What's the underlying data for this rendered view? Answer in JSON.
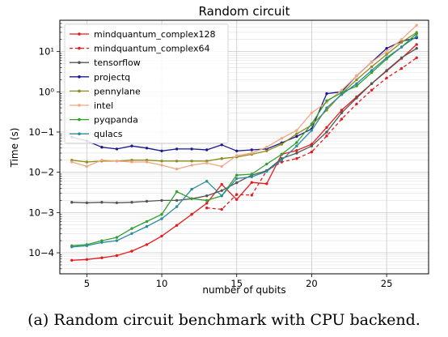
{
  "chart_data": {
    "type": "line",
    "title": "Random circuit",
    "xlabel": "number of qubits",
    "ylabel": "Time (s)",
    "xlim": [
      3.2,
      27.8
    ],
    "ylim": [
      3e-05,
      60
    ],
    "yscale": "log",
    "x_ticks": [
      5,
      10,
      15,
      20,
      25
    ],
    "x_tick_labels": [
      "5",
      "10",
      "15",
      "20",
      "25"
    ],
    "y_ticks": [
      0.0001,
      0.001,
      0.01,
      0.1,
      1,
      10
    ],
    "y_tick_labels": [
      "10−4",
      "10−3",
      "10−2",
      "10−1",
      "10⁰",
      "10¹"
    ],
    "grid": true,
    "legend_position": "top-left",
    "x": [
      4,
      5,
      6,
      7,
      8,
      9,
      10,
      11,
      12,
      13,
      14,
      15,
      16,
      17,
      18,
      19,
      20,
      21,
      22,
      23,
      24,
      25,
      26,
      27
    ],
    "series": [
      {
        "name": "mindquantum_complex128",
        "color": "#e8191c",
        "dashed": false,
        "values": [
          6.5e-05,
          6.8e-05,
          7.5e-05,
          8.5e-05,
          0.00011,
          0.00016,
          0.00026,
          0.00048,
          0.0009,
          0.0017,
          0.005,
          0.0021,
          0.0056,
          0.0052,
          0.028,
          0.035,
          0.05,
          0.13,
          0.35,
          0.75,
          1.6,
          3.3,
          6.8,
          15
        ]
      },
      {
        "name": "mindquantum_complex64",
        "color": "#e8191c",
        "dashed": true,
        "values": [
          null,
          null,
          null,
          null,
          null,
          null,
          null,
          null,
          null,
          0.0013,
          0.0012,
          0.0028,
          0.0027,
          0.011,
          0.018,
          0.022,
          0.032,
          0.08,
          0.21,
          0.5,
          1.1,
          2.2,
          3.8,
          7
        ]
      },
      {
        "name": "tensorflow",
        "color": "#555555",
        "dashed": false,
        "values": [
          0.0018,
          0.00175,
          0.0018,
          0.00175,
          0.0018,
          0.0019,
          0.002,
          0.002,
          0.0022,
          0.0026,
          0.0035,
          0.0055,
          0.0085,
          0.011,
          0.022,
          0.03,
          0.045,
          0.1,
          0.3,
          0.7,
          1.6,
          3.4,
          7,
          12
        ]
      },
      {
        "name": "projectq",
        "color": "#1a1a8c",
        "dashed": false,
        "values": [
          0.075,
          0.06,
          0.042,
          0.038,
          0.045,
          0.04,
          0.034,
          0.038,
          0.038,
          0.036,
          0.048,
          0.034,
          0.036,
          0.038,
          0.054,
          0.078,
          0.12,
          0.9,
          1.0,
          2.5,
          5.5,
          12,
          18,
          22
        ]
      },
      {
        "name": "pennylane",
        "color": "#8c8c1a",
        "dashed": false,
        "values": [
          0.02,
          0.018,
          0.019,
          0.019,
          0.02,
          0.02,
          0.019,
          0.019,
          0.019,
          0.019,
          0.022,
          0.024,
          0.028,
          0.034,
          0.05,
          0.09,
          0.15,
          0.35,
          0.9,
          2.0,
          4.2,
          8.5,
          17,
          30
        ]
      },
      {
        "name": "intel",
        "color": "#f4a582",
        "dashed": false,
        "values": [
          0.018,
          0.014,
          0.02,
          0.019,
          0.018,
          0.018,
          0.015,
          0.012,
          0.015,
          0.017,
          0.014,
          0.026,
          0.03,
          0.042,
          0.07,
          0.11,
          0.3,
          0.55,
          1.1,
          2.5,
          5.5,
          10,
          20,
          45
        ]
      },
      {
        "name": "pyqpanda",
        "color": "#33a02c",
        "dashed": false,
        "values": [
          0.00015,
          0.00016,
          0.0002,
          0.00024,
          0.0004,
          0.0006,
          0.0009,
          0.0033,
          0.0022,
          0.002,
          0.0026,
          0.0085,
          0.009,
          0.016,
          0.028,
          0.055,
          0.16,
          0.6,
          0.95,
          1.4,
          3.0,
          6.5,
          13,
          28
        ]
      },
      {
        "name": "qulacs",
        "color": "#2b8c9c",
        "dashed": false,
        "values": [
          0.00014,
          0.00015,
          0.00018,
          0.0002,
          0.0003,
          0.00045,
          0.0007,
          0.0014,
          0.0038,
          0.006,
          0.0026,
          0.007,
          0.0077,
          0.0105,
          0.02,
          0.045,
          0.11,
          0.4,
          0.85,
          1.6,
          3.4,
          7,
          13,
          24
        ]
      }
    ]
  },
  "caption": "(a) Random circuit benchmark with CPU backend."
}
